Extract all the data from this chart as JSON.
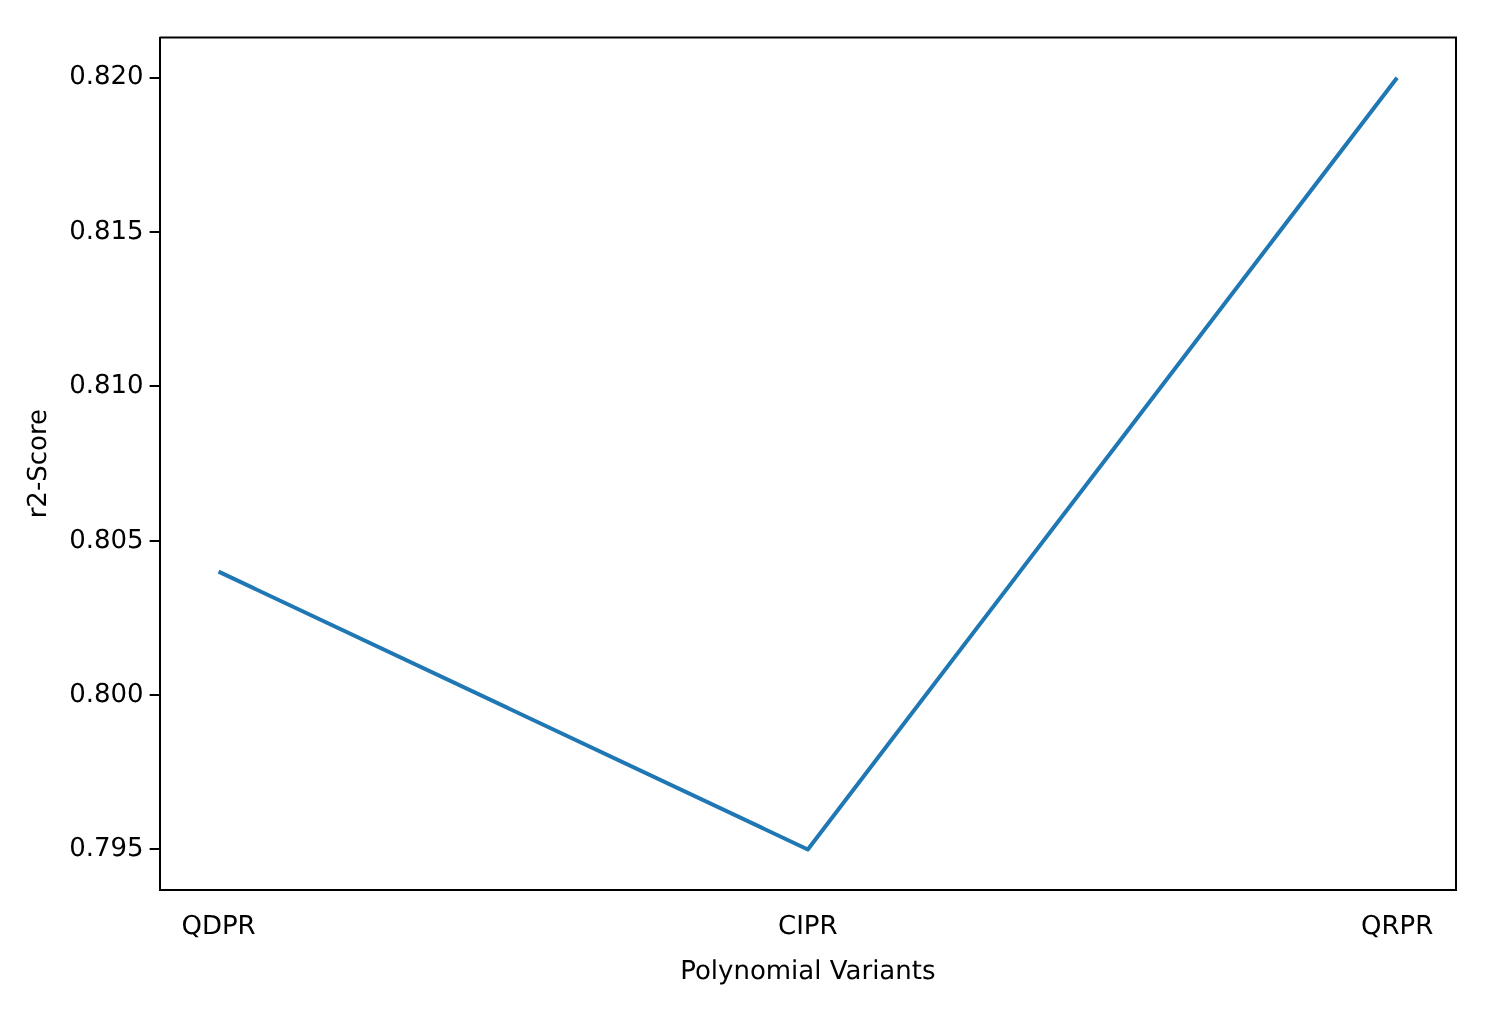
{
  "chart_data": {
    "type": "line",
    "xlabel": "Polynomial Variants",
    "ylabel": "r2-Score",
    "categories": [
      "QDPR",
      "CIPR",
      "QRPR"
    ],
    "series": [
      {
        "color": "#1f77b4",
        "values": [
          0.804,
          0.795,
          0.82
        ]
      }
    ],
    "ylim": [
      0.7937,
      0.8213
    ],
    "yticks": [
      0.795,
      {
        "value": 0.8,
        "label": "0.800"
      },
      0.805,
      {
        "value": 0.81,
        "label": "0.810"
      },
      0.815,
      {
        "value": 0.82,
        "label": "0.820"
      }
    ],
    "grid": false,
    "legend": false,
    "marker": "none",
    "line_style": "solid"
  }
}
